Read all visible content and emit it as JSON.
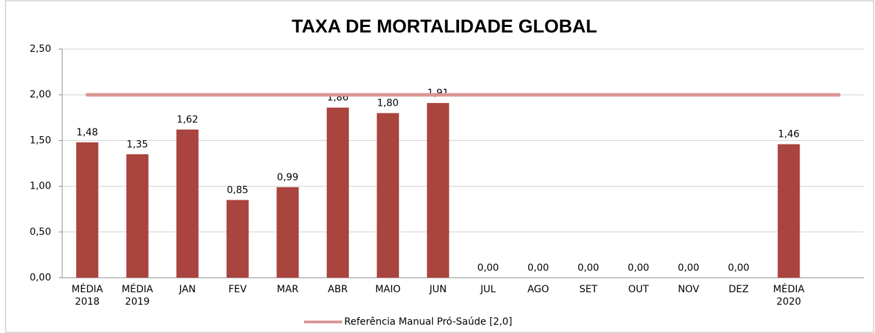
{
  "chart_data": {
    "type": "bar",
    "title": "TAXA DE MORTALIDADE GLOBAL",
    "categories": [
      "MÉDIA 2018",
      "MÉDIA 2019",
      "JAN",
      "FEV",
      "MAR",
      "ABR",
      "MAIO",
      "JUN",
      "JUL",
      "AGO",
      "SET",
      "OUT",
      "NOV",
      "DEZ",
      "MÉDIA 2020",
      null
    ],
    "values": [
      1.48,
      1.35,
      1.62,
      0.85,
      0.99,
      1.86,
      1.8,
      1.91,
      0,
      0,
      0,
      0,
      0,
      0,
      1.46,
      null
    ],
    "value_labels": [
      "1,48",
      "1,35",
      "1,62",
      "0,85",
      "0,99",
      "1,86",
      "1,80",
      "1,91",
      "0,00",
      "0,00",
      "0,00",
      "0,00",
      "0,00",
      "0,00",
      "1,46",
      null
    ],
    "color": "#a9443f",
    "series": [
      {
        "name": "Referência Manual Pró-Saúde [2,0]",
        "color": "#d99694",
        "values": [
          2,
          2,
          2,
          2,
          2,
          2,
          2,
          2,
          2,
          2,
          2,
          2,
          2,
          2,
          2,
          2
        ]
      }
    ],
    "ylim": [
      0,
      2.5
    ],
    "yticks": [
      {
        "value": 0,
        "label": "0,00"
      },
      {
        "value": 0.5,
        "label": "0,50"
      },
      {
        "value": 1,
        "label": "1,00"
      },
      {
        "value": 1.5,
        "label": "1,50"
      },
      {
        "value": 2,
        "label": "2,00"
      },
      {
        "value": 2.5,
        "label": "2,50"
      }
    ],
    "grid": true,
    "legend": "bottom"
  }
}
